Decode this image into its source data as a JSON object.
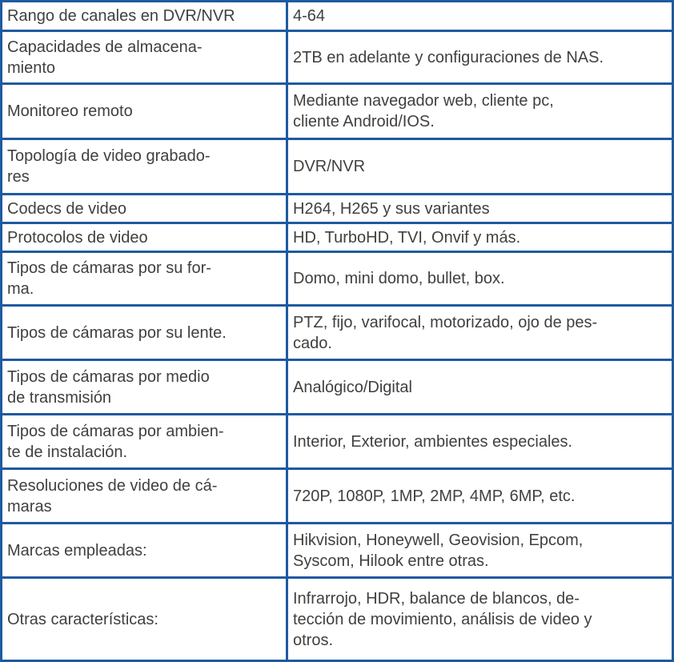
{
  "rows": [
    {
      "label": "Rango de canales en DVR/NVR",
      "value": "4-64"
    },
    {
      "label": "Capacidades de almacena-\nmiento",
      "value": "2TB en adelante y configuraciones de NAS."
    },
    {
      "label": "Monitoreo remoto",
      "value": "Mediante navegador web, cliente pc,\ncliente Android/IOS."
    },
    {
      "label": "Topología de video grabado-\nres",
      "value": "DVR/NVR"
    },
    {
      "label": "Codecs de video",
      "value": "H264, H265 y sus variantes"
    },
    {
      "label": "Protocolos de video",
      "value": "HD, TurboHD, TVI, Onvif y más."
    },
    {
      "label": "Tipos de cámaras por su for-\nma.",
      "value": "Domo, mini domo, bullet, box."
    },
    {
      "label": "Tipos de cámaras por su lente.",
      "value": "PTZ, fijo, varifocal, motorizado, ojo de pes-\ncado."
    },
    {
      "label": "Tipos de cámaras por medio\nde transmisión",
      "value": "Analógico/Digital"
    },
    {
      "label": "Tipos de cámaras por ambien-\nte de instalación.",
      "value": "Interior, Exterior, ambientes especiales."
    },
    {
      "label": "Resoluciones de video de cá-\nmaras",
      "value": "720P, 1080P, 1MP, 2MP, 4MP, 6MP, etc."
    },
    {
      "label": "Marcas empleadas:",
      "value": "Hikvision, Honeywell, Geovision, Epcom,\nSyscom, Hilook entre otras."
    },
    {
      "label": "Otras características:",
      "value": "Infrarrojo, HDR, balance de blancos, de-\ntección de movimiento, análisis de video y\notros."
    }
  ]
}
